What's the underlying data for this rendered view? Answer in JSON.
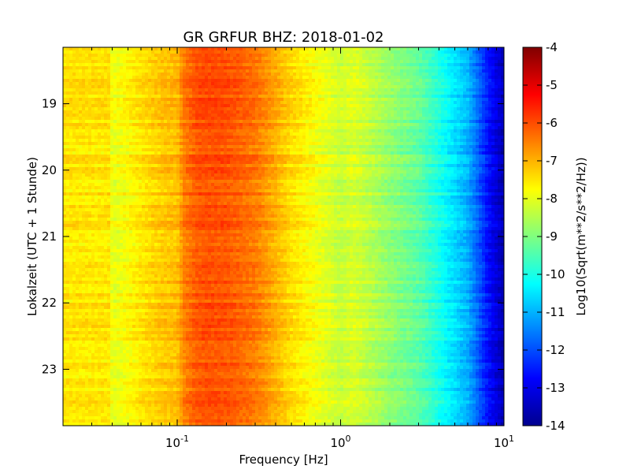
{
  "chart_data": {
    "type": "heatmap",
    "title": "GR GRFUR BHZ: 2018-01-02",
    "xlabel": "Frequency [Hz]",
    "ylabel": "Lokalzeit (UTC + 1 Stunde)",
    "x_scale": "log",
    "xlim": [
      0.02,
      10
    ],
    "x_ticks": [
      {
        "value": 0.1,
        "label": "10^-1"
      },
      {
        "value": 1,
        "label": "10^0"
      },
      {
        "value": 10,
        "label": "10^1"
      }
    ],
    "y_unit": "hour of day (local time)",
    "ylim": [
      18.15,
      23.85
    ],
    "y_inverted": true,
    "y_ticks": [
      "19",
      "20",
      "21",
      "22",
      "23"
    ],
    "colormap": "jet",
    "colorbar": {
      "label": "Log10(Sqrt(m**2/s**2/Hz))",
      "range": [
        -14,
        -4
      ],
      "ticks": [
        "-4",
        "-5",
        "-6",
        "-7",
        "-8",
        "-9",
        "-10",
        "-11",
        "-12",
        "-13",
        "-14"
      ]
    },
    "spectrum_profile": {
      "frequency_hz": [
        0.02,
        0.039,
        0.04,
        0.06,
        0.08,
        0.1,
        0.11,
        0.13,
        0.15,
        0.2,
        0.3,
        0.5,
        0.8,
        1.0,
        1.2,
        2.0,
        3.0,
        4.0,
        6.0,
        8.0,
        10.0
      ],
      "log10_asd": [
        -7.5,
        -7.5,
        -8.0,
        -7.5,
        -7.2,
        -7.1,
        -6.5,
        -6.1,
        -6.0,
        -6.05,
        -6.4,
        -7.4,
        -8.0,
        -8.3,
        -8.1,
        -8.8,
        -9.3,
        -10.0,
        -11.0,
        -12.6,
        -13.5
      ]
    }
  }
}
